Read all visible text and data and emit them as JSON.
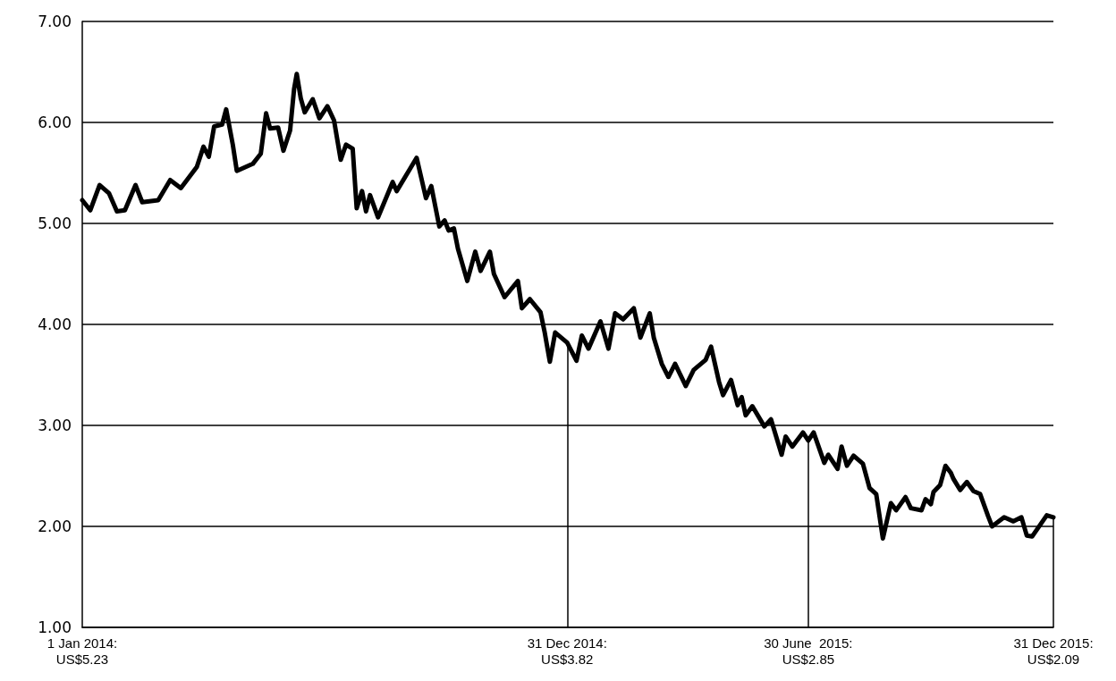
{
  "chart_data": {
    "type": "line",
    "x": [
      "2014-01-01",
      "2014-01-07",
      "2014-01-14",
      "2014-01-21",
      "2014-01-27",
      "2014-02-02",
      "2014-02-10",
      "2014-02-15",
      "2014-02-27",
      "2014-03-08",
      "2014-03-16",
      "2014-03-28",
      "2014-04-02",
      "2014-04-06",
      "2014-04-10",
      "2014-04-16",
      "2014-04-19",
      "2014-04-24",
      "2014-04-27",
      "2014-05-09",
      "2014-05-15",
      "2014-05-19",
      "2014-05-22",
      "2014-05-28",
      "2014-06-01",
      "2014-06-06",
      "2014-06-09",
      "2014-06-11",
      "2014-06-14",
      "2014-06-17",
      "2014-06-23",
      "2014-06-28",
      "2014-07-04",
      "2014-07-09",
      "2014-07-14",
      "2014-07-18",
      "2014-07-23",
      "2014-07-26",
      "2014-07-30",
      "2014-08-02",
      "2014-08-05",
      "2014-08-11",
      "2014-08-22",
      "2014-08-25",
      "2014-09-04",
      "2014-09-09",
      "2014-09-16",
      "2014-09-20",
      "2014-09-26",
      "2014-09-30",
      "2014-10-03",
      "2014-10-07",
      "2014-10-10",
      "2014-10-17",
      "2014-10-23",
      "2014-10-27",
      "2014-11-03",
      "2014-11-06",
      "2014-11-14",
      "2014-11-24",
      "2014-11-27",
      "2014-12-03",
      "2014-12-11",
      "2014-12-14",
      "2014-12-18",
      "2014-12-22",
      "2014-12-31",
      "2015-01-07",
      "2015-01-11",
      "2015-01-16",
      "2015-01-25",
      "2015-01-31",
      "2015-02-05",
      "2015-02-11",
      "2015-02-19",
      "2015-02-24",
      "2015-03-03",
      "2015-03-06",
      "2015-03-12",
      "2015-03-17",
      "2015-03-22",
      "2015-03-30",
      "2015-04-05",
      "2015-04-14",
      "2015-04-18",
      "2015-04-24",
      "2015-04-27",
      "2015-05-03",
      "2015-05-08",
      "2015-05-11",
      "2015-05-14",
      "2015-05-19",
      "2015-05-28",
      "2015-06-02",
      "2015-06-10",
      "2015-06-13",
      "2015-06-18",
      "2015-06-26",
      "2015-06-30",
      "2015-07-04",
      "2015-07-12",
      "2015-07-15",
      "2015-07-22",
      "2015-07-25",
      "2015-07-29",
      "2015-08-03",
      "2015-08-10",
      "2015-08-15",
      "2015-08-20",
      "2015-08-25",
      "2015-08-31",
      "2015-09-04",
      "2015-09-11",
      "2015-09-15",
      "2015-09-23",
      "2015-09-26",
      "2015-09-30",
      "2015-10-02",
      "2015-10-07",
      "2015-10-11",
      "2015-10-15",
      "2015-10-17",
      "2015-10-22",
      "2015-10-27",
      "2015-11-01",
      "2015-11-06",
      "2015-11-12",
      "2015-11-15",
      "2015-11-24",
      "2015-12-01",
      "2015-12-07",
      "2015-12-11",
      "2015-12-15",
      "2015-12-26",
      "2015-12-31"
    ],
    "series": [
      {
        "color": "#000000",
        "values": [
          5.23,
          5.13,
          5.38,
          5.3,
          5.12,
          5.13,
          5.38,
          5.21,
          5.23,
          5.43,
          5.35,
          5.56,
          5.76,
          5.66,
          5.96,
          5.98,
          6.13,
          5.78,
          5.52,
          5.59,
          5.69,
          6.09,
          5.94,
          5.95,
          5.72,
          5.92,
          6.33,
          6.48,
          6.24,
          6.1,
          6.23,
          6.04,
          6.16,
          6.02,
          5.63,
          5.78,
          5.74,
          5.15,
          5.32,
          5.12,
          5.28,
          5.06,
          5.41,
          5.32,
          5.54,
          5.65,
          5.25,
          5.37,
          4.97,
          5.03,
          4.93,
          4.95,
          4.75,
          4.43,
          4.72,
          4.53,
          4.72,
          4.5,
          4.27,
          4.43,
          4.16,
          4.25,
          4.12,
          3.93,
          3.63,
          3.92,
          3.82,
          3.64,
          3.89,
          3.76,
          4.03,
          3.76,
          4.11,
          4.05,
          4.16,
          3.87,
          4.11,
          3.87,
          3.61,
          3.48,
          3.61,
          3.39,
          3.55,
          3.65,
          3.78,
          3.43,
          3.3,
          3.45,
          3.2,
          3.28,
          3.1,
          3.19,
          2.99,
          3.06,
          2.71,
          2.89,
          2.79,
          2.93,
          2.85,
          2.93,
          2.63,
          2.71,
          2.57,
          2.79,
          2.6,
          2.7,
          2.62,
          2.38,
          2.32,
          1.88,
          2.23,
          2.16,
          2.29,
          2.18,
          2.16,
          2.27,
          2.22,
          2.34,
          2.41,
          2.6,
          2.53,
          2.47,
          2.36,
          2.44,
          2.35,
          2.32,
          2.1,
          2.0,
          2.09,
          2.05,
          2.09,
          1.91,
          1.9,
          2.11,
          2.09
        ]
      }
    ],
    "xlim": [
      "2014-01-01",
      "2015-12-31"
    ],
    "ylim": [
      1,
      7
    ],
    "yticks": [
      {
        "value": 1,
        "label": "1.00"
      },
      {
        "value": 2,
        "label": "2.00"
      },
      {
        "value": 3,
        "label": "3.00"
      },
      {
        "value": 4,
        "label": "4.00"
      },
      {
        "value": 5,
        "label": "5.00"
      },
      {
        "value": 6,
        "label": "6.00"
      },
      {
        "value": 7,
        "label": "7.00"
      }
    ],
    "xticks": [
      {
        "value": "2014-01-01",
        "label": "1 Jan 2014:\nUS$5.23"
      },
      {
        "value": "2014-12-31",
        "label": "31 Dec 2014:\nUS$3.82"
      },
      {
        "value": "2015-06-30",
        "label": "30 June  2015:\nUS$2.85"
      },
      {
        "value": "2015-12-31",
        "label": "31 Dec 2015:\nUS$2.09"
      }
    ],
    "grid": "y",
    "marker": "none",
    "line_style": "solid",
    "ref_lines": [
      {
        "axis": "x",
        "value": "2014-12-31"
      },
      {
        "axis": "x",
        "value": "2015-06-30"
      },
      {
        "axis": "x",
        "value": "2015-12-31"
      }
    ]
  }
}
